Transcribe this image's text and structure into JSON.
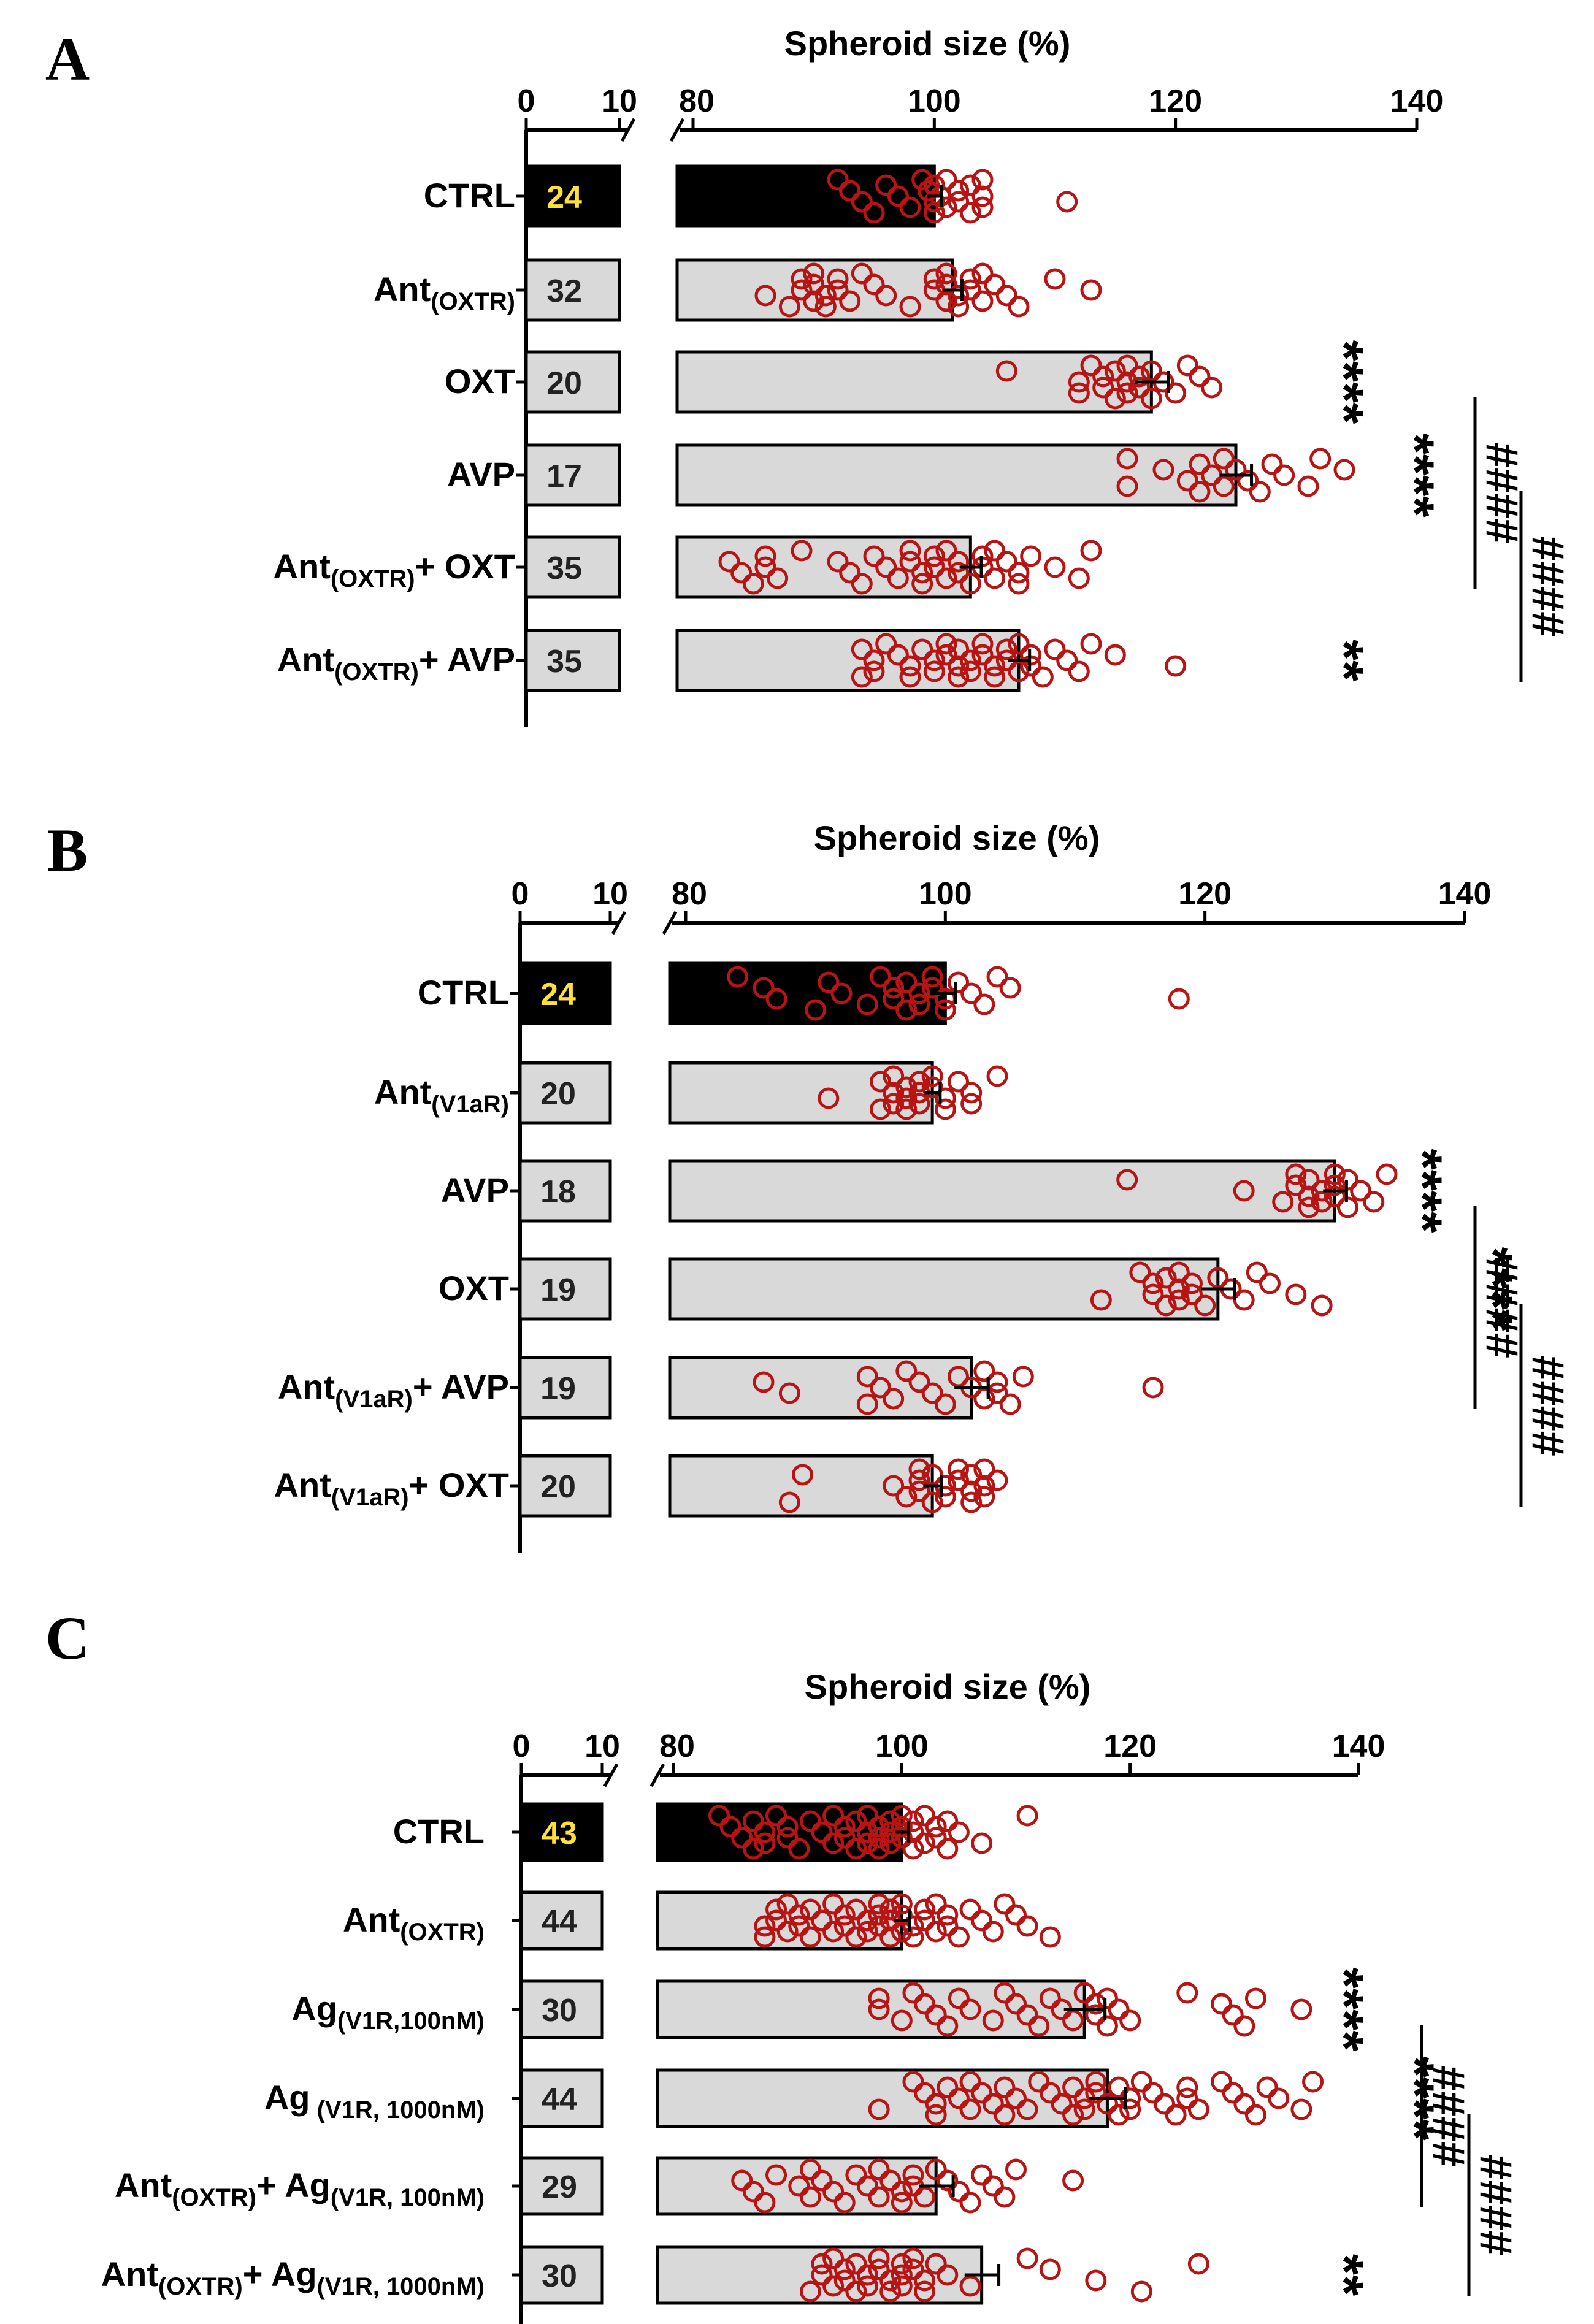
{
  "colors": {
    "ctrl_bar": "#000000",
    "other_bar": "#d9d9d9",
    "points": "#b81414",
    "ctrl_n_text": "#ffe03a",
    "n_text": "#222222"
  },
  "chart_data": [
    {
      "panel": "A",
      "type": "bar",
      "orientation": "horizontal",
      "xlabel": "Spheroid size (%)",
      "axis_break": [
        10,
        80
      ],
      "xlim": [
        0,
        140
      ],
      "ticks": [
        "0",
        "10",
        "80",
        "100",
        "120",
        "140"
      ],
      "grid": false,
      "categories": [
        {
          "main": "CTRL",
          "sub": "",
          "suffix": ""
        },
        {
          "main": "Ant",
          "sub": "(OXTR)",
          "suffix": ""
        },
        {
          "main": "OXT",
          "sub": "",
          "suffix": ""
        },
        {
          "main": "AVP",
          "sub": "",
          "suffix": ""
        },
        {
          "main": "Ant",
          "sub": "(OXTR)",
          "suffix": "+ OXT"
        },
        {
          "main": "Ant",
          "sub": "(OXTR)",
          "suffix": "+ AVP"
        }
      ],
      "n": [
        "24",
        "32",
        "20",
        "17",
        "35",
        "35"
      ],
      "values": [
        100,
        101.5,
        118,
        125,
        103,
        107
      ],
      "sem": [
        0.6,
        0.8,
        1.4,
        1.3,
        0.9,
        0.9
      ],
      "points": [
        [
          92,
          93,
          94,
          95,
          96,
          97,
          98,
          99,
          99.5,
          100,
          100,
          100,
          100.5,
          101,
          101,
          102,
          102,
          103,
          103,
          104,
          104,
          104,
          93,
          111
        ],
        [
          86,
          88,
          89,
          89,
          90,
          90,
          90,
          91,
          91,
          92,
          92,
          93,
          94,
          95,
          96,
          98,
          100,
          100,
          101,
          101,
          101,
          102,
          102,
          103,
          103,
          104,
          104,
          105,
          106,
          107,
          110,
          113
        ],
        [
          106,
          112,
          112,
          113,
          114,
          114,
          115,
          115,
          116,
          116,
          116,
          117,
          117,
          118,
          118,
          119,
          120,
          121,
          122,
          123
        ],
        [
          116,
          116,
          119,
          121,
          122,
          122,
          123,
          124,
          124,
          125,
          126,
          127,
          128,
          129,
          131,
          132,
          134
        ],
        [
          83,
          84,
          85,
          86,
          86,
          87,
          89,
          92,
          93,
          94,
          95,
          96,
          97,
          98,
          98,
          99,
          99,
          100,
          100,
          101,
          101,
          102,
          102,
          103,
          104,
          104,
          105,
          105,
          106,
          107,
          107,
          108,
          110,
          112,
          113
        ],
        [
          94,
          94,
          95,
          95,
          96,
          97,
          98,
          98,
          99,
          100,
          100,
          101,
          101,
          102,
          102,
          102,
          103,
          103,
          104,
          104,
          105,
          105,
          106,
          106,
          107,
          107,
          108,
          108,
          109,
          110,
          111,
          112,
          113,
          115,
          120
        ]
      ],
      "significance": [
        {
          "row": 2,
          "label": "****"
        },
        {
          "row": 3,
          "label": "****"
        },
        {
          "row": 5,
          "label": "**"
        }
      ],
      "brackets": [
        {
          "from": 2,
          "to": 4,
          "label": "####"
        },
        {
          "from": 3,
          "to": 5,
          "label": "####"
        }
      ]
    },
    {
      "panel": "B",
      "type": "bar",
      "orientation": "horizontal",
      "xlabel": "Spheroid size (%)",
      "axis_break": [
        10,
        80
      ],
      "xlim": [
        0,
        140
      ],
      "ticks": [
        "0",
        "10",
        "80",
        "100",
        "120",
        "140"
      ],
      "grid": false,
      "categories": [
        {
          "main": "CTRL",
          "sub": "",
          "suffix": ""
        },
        {
          "main": "Ant",
          "sub": "(V1aR)",
          "suffix": ""
        },
        {
          "main": "AVP",
          "sub": "",
          "suffix": ""
        },
        {
          "main": "OXT",
          "sub": "",
          "suffix": ""
        },
        {
          "main": "Ant",
          "sub": "(V1aR)",
          "suffix": "+ AVP"
        },
        {
          "main": "Ant",
          "sub": "(V1aR)",
          "suffix": "+ OXT"
        }
      ],
      "n": [
        "24",
        "20",
        "18",
        "19",
        "19",
        "20"
      ],
      "values": [
        100,
        99,
        130,
        121,
        102,
        99
      ],
      "sem": [
        0.8,
        0.6,
        0.9,
        1.3,
        1.3,
        0.7
      ],
      "points": [
        [
          84,
          86,
          87,
          90,
          91,
          92,
          94,
          95,
          96,
          96,
          97,
          97,
          98,
          98,
          99,
          99,
          100,
          100,
          101,
          102,
          103,
          104,
          105,
          118
        ],
        [
          91,
          95,
          95,
          96,
          96,
          96,
          97,
          97,
          97,
          98,
          98,
          98,
          99,
          99,
          100,
          100,
          101,
          102,
          102,
          104
        ],
        [
          114,
          123,
          126,
          127,
          127,
          128,
          128,
          128,
          129,
          129,
          130,
          130,
          130,
          131,
          131,
          132,
          133,
          134
        ],
        [
          112,
          115,
          116,
          116,
          117,
          117,
          118,
          118,
          118,
          119,
          119,
          120,
          121,
          122,
          123,
          124,
          125,
          127,
          129
        ],
        [
          86,
          88,
          94,
          94,
          95,
          96,
          97,
          98,
          99,
          100,
          101,
          102,
          103,
          103,
          104,
          104,
          105,
          106,
          116
        ],
        [
          88,
          89,
          96,
          97,
          98,
          98,
          98,
          99,
          99,
          100,
          100,
          101,
          101,
          102,
          102,
          102,
          103,
          103,
          103,
          104
        ]
      ],
      "significance": [
        {
          "row": 2,
          "label": "****"
        },
        {
          "row": 3,
          "label": "****"
        }
      ],
      "brackets": [
        {
          "from": 2,
          "to": 4,
          "label": "####"
        },
        {
          "from": 3,
          "to": 5,
          "label": "####"
        }
      ]
    },
    {
      "panel": "C",
      "type": "bar",
      "orientation": "horizontal",
      "xlabel": "Spheroid size (%)",
      "axis_break": [
        10,
        80
      ],
      "xlim": [
        0,
        140
      ],
      "ticks": [
        "0",
        "10",
        "80",
        "100",
        "120",
        "140"
      ],
      "grid": false,
      "categories": [
        {
          "main": "CTRL",
          "sub": "",
          "suffix": "",
          "sub2": ""
        },
        {
          "main": "Ant",
          "sub": "(OXTR)",
          "suffix": "",
          "sub2": ""
        },
        {
          "main": "Ag",
          "sub": "(V1R,100nM)",
          "suffix": "",
          "sub2": ""
        },
        {
          "main": "Ag",
          "sub": " (V1R, 1000nM)",
          "suffix": "",
          "sub2": ""
        },
        {
          "main": "Ant",
          "sub": "(OXTR)",
          "suffix": "+ Ag",
          "sub2": "(V1R, 100nM)"
        },
        {
          "main": "Ant",
          "sub": "(OXTR)",
          "suffix": "+ Ag",
          "sub2": "(V1R, 1000nM)"
        }
      ],
      "n": [
        "43",
        "44",
        "30",
        "44",
        "29",
        "30"
      ],
      "values": [
        100,
        100,
        116,
        118,
        103,
        107
      ],
      "sem": [
        0.6,
        0.7,
        1.8,
        1.6,
        1.5,
        1.5
      ],
      "points": [
        [
          84,
          85,
          86,
          87,
          87,
          88,
          88,
          89,
          90,
          90,
          91,
          92,
          93,
          94,
          94,
          95,
          95,
          96,
          96,
          97,
          97,
          97,
          98,
          98,
          98,
          99,
          99,
          99,
          100,
          100,
          100,
          101,
          101,
          101,
          102,
          102,
          103,
          103,
          104,
          104,
          105,
          107,
          111
        ],
        [
          88,
          88,
          89,
          89,
          90,
          90,
          91,
          91,
          92,
          92,
          93,
          94,
          94,
          95,
          95,
          96,
          96,
          97,
          97,
          98,
          98,
          98,
          99,
          99,
          99,
          100,
          100,
          100,
          101,
          101,
          102,
          102,
          103,
          103,
          104,
          104,
          105,
          106,
          107,
          108,
          109,
          110,
          111,
          113
        ],
        [
          98,
          98,
          100,
          101,
          102,
          103,
          104,
          105,
          106,
          108,
          109,
          110,
          111,
          112,
          113,
          114,
          115,
          116,
          117,
          117,
          118,
          118,
          119,
          120,
          125,
          128,
          129,
          130,
          131,
          135
        ],
        [
          98,
          101,
          102,
          103,
          103,
          104,
          105,
          106,
          106,
          107,
          108,
          109,
          109,
          110,
          111,
          112,
          113,
          114,
          115,
          115,
          116,
          116,
          117,
          117,
          118,
          119,
          119,
          120,
          120,
          121,
          122,
          123,
          124,
          125,
          125,
          126,
          128,
          129,
          130,
          131,
          132,
          133,
          135,
          136
        ],
        [
          86,
          87,
          88,
          89,
          91,
          92,
          92,
          93,
          94,
          95,
          96,
          97,
          98,
          98,
          99,
          100,
          100,
          101,
          101,
          102,
          103,
          104,
          105,
          106,
          107,
          108,
          109,
          110,
          115
        ],
        [
          92,
          93,
          93,
          94,
          94,
          95,
          95,
          96,
          96,
          97,
          97,
          98,
          98,
          99,
          99,
          100,
          100,
          100,
          101,
          101,
          102,
          102,
          103,
          104,
          106,
          111,
          113,
          117,
          121,
          126
        ]
      ],
      "significance": [
        {
          "row": 2,
          "label": "****"
        },
        {
          "row": 3,
          "label": "****"
        },
        {
          "row": 5,
          "label": "**"
        }
      ],
      "brackets": [
        {
          "from": 2,
          "to": 4,
          "label": "####"
        },
        {
          "from": 3,
          "to": 5,
          "label": "####"
        }
      ]
    }
  ]
}
